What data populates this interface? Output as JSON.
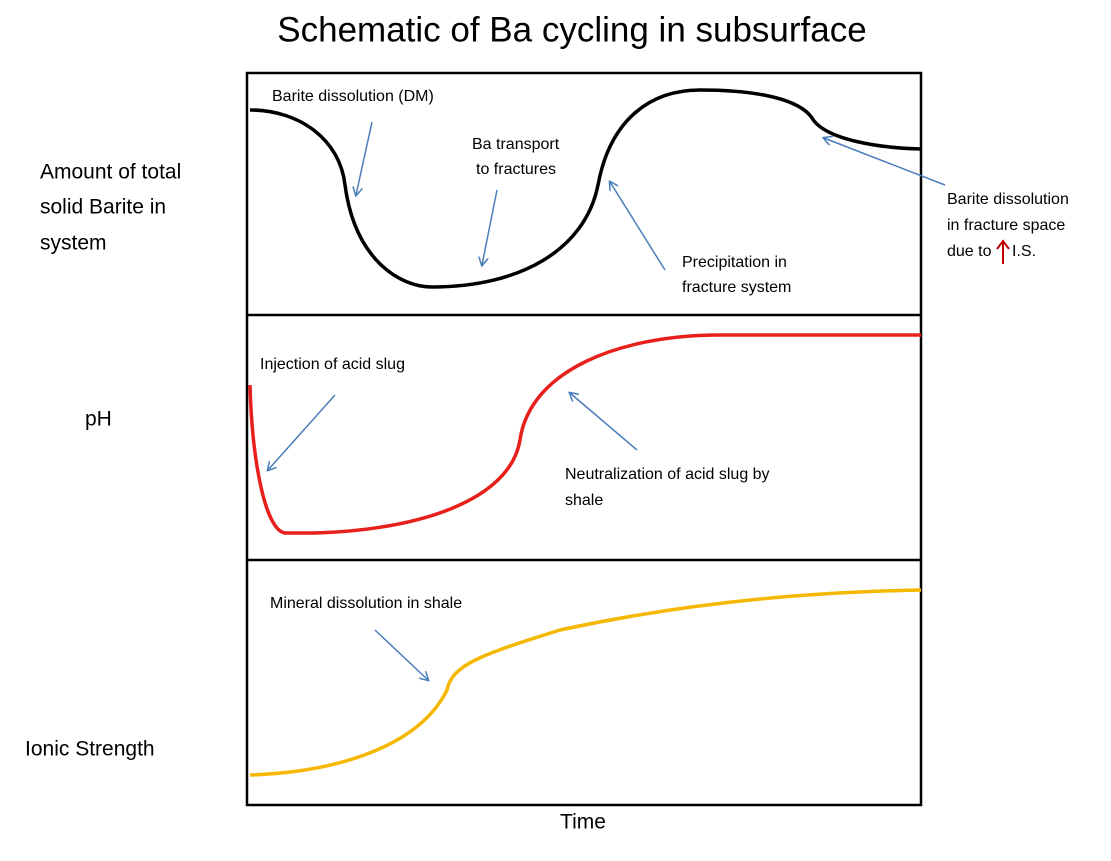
{
  "title": "Schematic of Ba cycling in subsurface",
  "x_label": "Time",
  "panels": [
    {
      "label_lines": [
        "Amount of total",
        "solid Barite in",
        "system"
      ],
      "annotations": [
        {
          "lines": [
            "Barite dissolution (DM)"
          ]
        },
        {
          "lines": [
            "Ba transport",
            "to fractures"
          ]
        },
        {
          "lines": [
            "Precipitation in",
            "fracture system"
          ]
        },
        {
          "lines": [
            "Barite dissolution",
            "in fracture space",
            "due to",
            "I.S."
          ]
        }
      ]
    },
    {
      "label_lines": [
        "pH"
      ],
      "annotations": [
        {
          "lines": [
            "Injection of acid slug"
          ]
        },
        {
          "lines": [
            "Neutralization of acid slug by",
            "shale"
          ]
        }
      ]
    },
    {
      "label_lines": [
        "Ionic Strength"
      ],
      "annotations": [
        {
          "lines": [
            "Mineral dissolution in shale"
          ]
        }
      ]
    }
  ]
}
